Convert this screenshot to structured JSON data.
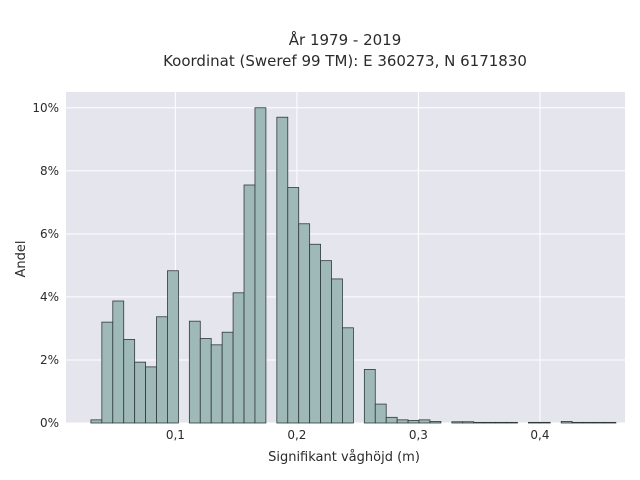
{
  "chart_data": {
    "type": "bar",
    "title": "År 1979 - 2019",
    "subtitle": "Koordinat (Sweref 99 TM): E 360273, N 6171830",
    "xlabel": "Signifikant våghöjd (m)",
    "ylabel": "Andel",
    "xlim": [
      0.01,
      0.47
    ],
    "ylim": [
      0,
      0.105
    ],
    "grid": true,
    "x_ticks": [
      {
        "value": 0.1,
        "label": "0,1"
      },
      {
        "value": 0.2,
        "label": "0,2"
      },
      {
        "value": 0.3,
        "label": "0,3"
      },
      {
        "value": 0.4,
        "label": "0,4"
      }
    ],
    "y_ticks": [
      {
        "value": 0.0,
        "label": "0%"
      },
      {
        "value": 0.02,
        "label": "2%"
      },
      {
        "value": 0.04,
        "label": "4%"
      },
      {
        "value": 0.06,
        "label": "6%"
      },
      {
        "value": 0.08,
        "label": "8%"
      },
      {
        "value": 0.1,
        "label": "10%"
      }
    ],
    "bin_width": 0.009,
    "bins_start": [
      0.0305,
      0.0395,
      0.0485,
      0.0575,
      0.0665,
      0.0755,
      0.0845,
      0.0935,
      0.1025,
      0.1115,
      0.1205,
      0.1295,
      0.1385,
      0.1475,
      0.1565,
      0.1655,
      0.1745,
      0.1835,
      0.1925,
      0.2015,
      0.2105,
      0.2195,
      0.2285,
      0.2375,
      0.2465,
      0.2555,
      0.2645,
      0.2735,
      0.2825,
      0.2915,
      0.3005,
      0.3095,
      0.3185,
      0.3275,
      0.3365,
      0.3455,
      0.3545,
      0.3635,
      0.3725,
      0.3815,
      0.3905,
      0.3995,
      0.4085,
      0.4175,
      0.4265,
      0.4355,
      0.4445,
      0.4535
    ],
    "values": [
      0.001,
      0.032,
      0.0387,
      0.0265,
      0.0193,
      0.0178,
      0.0337,
      0.0483,
      0.0,
      0.0323,
      0.0268,
      0.0248,
      0.0288,
      0.0413,
      0.0755,
      0.1,
      0.0,
      0.097,
      0.0747,
      0.0632,
      0.0567,
      0.0515,
      0.0457,
      0.0302,
      0.0,
      0.017,
      0.006,
      0.0018,
      0.001,
      0.0008,
      0.001,
      0.0005,
      0.0,
      0.0004,
      0.0004,
      0.0002,
      0.0002,
      0.0002,
      0.0002,
      0.0,
      0.0002,
      0.0002,
      0.0,
      0.0005,
      0.0002,
      0.0002,
      0.0002,
      0.0002
    ],
    "colors": {
      "plot_background": "#e5e5ee",
      "bar_fill": "#9fb8b8",
      "bar_edge": "#2e3a3a",
      "grid": "#ffffff"
    }
  }
}
